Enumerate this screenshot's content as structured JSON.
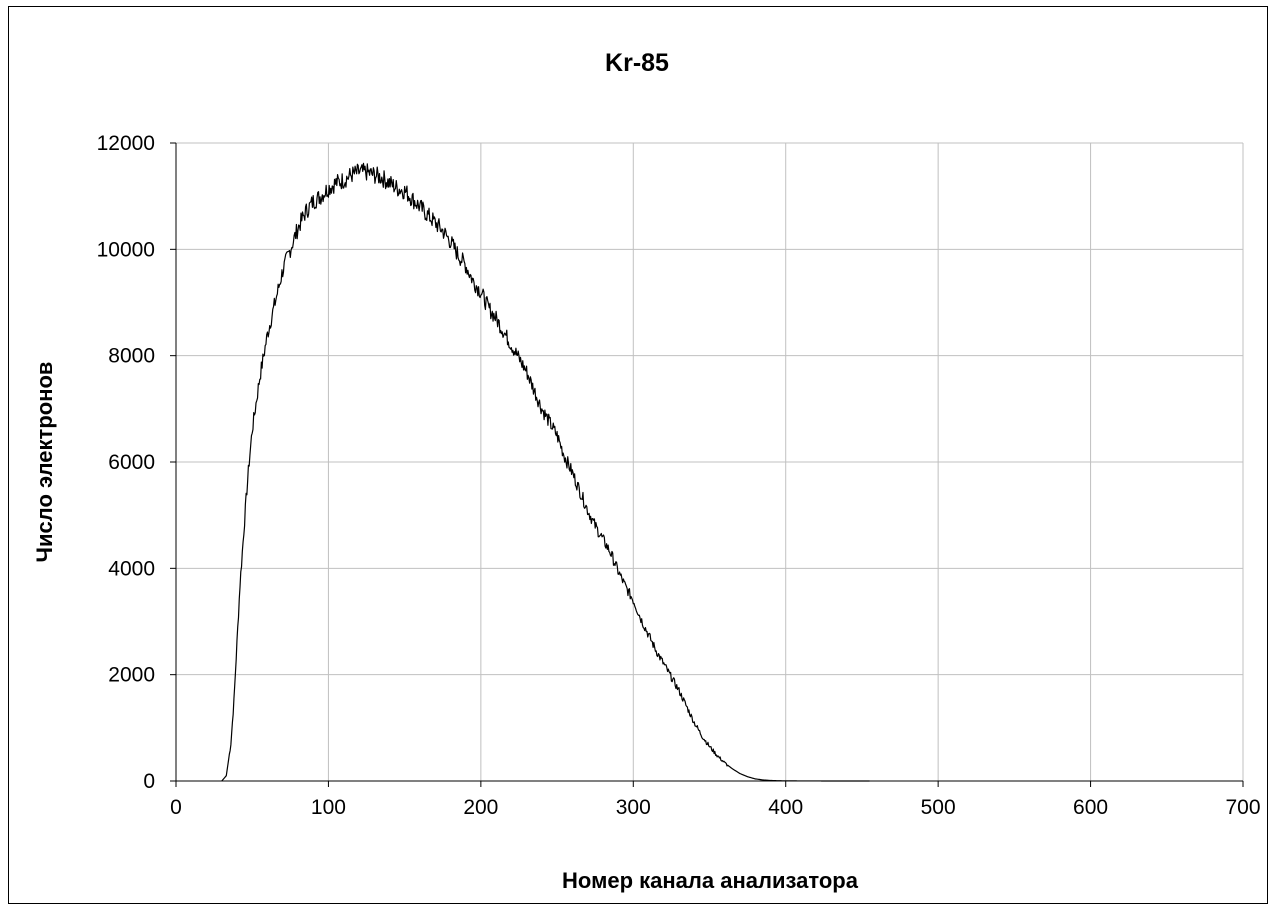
{
  "chart_data": {
    "type": "line",
    "title": "Kr-85",
    "xlabel": "Номер канала анализатора",
    "ylabel": "Число электронов",
    "xlim": [
      0,
      700
    ],
    "ylim": [
      0,
      12000
    ],
    "xticks": [
      "0",
      "100",
      "200",
      "300",
      "400",
      "500",
      "600",
      "700"
    ],
    "yticks": [
      "0",
      "2000",
      "4000",
      "6000",
      "8000",
      "10000",
      "12000"
    ],
    "grid": true,
    "legend": "none",
    "line_color": "#000000",
    "grid_color": "#c0c0c0",
    "x": [
      30,
      33,
      36,
      38,
      40,
      42,
      44,
      46,
      48,
      50,
      55,
      60,
      65,
      70,
      75,
      80,
      85,
      90,
      95,
      100,
      105,
      110,
      115,
      120,
      125,
      130,
      135,
      140,
      145,
      150,
      155,
      160,
      165,
      170,
      175,
      180,
      185,
      190,
      195,
      200,
      205,
      210,
      215,
      220,
      225,
      230,
      235,
      240,
      245,
      250,
      255,
      260,
      265,
      270,
      275,
      280,
      285,
      290,
      295,
      300,
      305,
      310,
      315,
      320,
      325,
      330,
      335,
      340,
      345,
      350,
      355,
      360,
      365,
      370,
      375,
      380,
      385,
      390,
      395,
      400,
      405,
      410,
      420,
      430,
      440,
      450,
      455
    ],
    "y": [
      0,
      100,
      700,
      1500,
      2600,
      3700,
      4500,
      5300,
      6000,
      6600,
      7600,
      8400,
      9000,
      9600,
      10000,
      10400,
      10700,
      10900,
      11000,
      11150,
      11250,
      11300,
      11400,
      11450,
      11450,
      11400,
      11350,
      11250,
      11150,
      11100,
      10950,
      10800,
      10650,
      10500,
      10350,
      10150,
      9900,
      9700,
      9400,
      9200,
      8900,
      8700,
      8450,
      8200,
      7950,
      7700,
      7350,
      7000,
      6750,
      6500,
      6100,
      5800,
      5450,
      5100,
      4800,
      4550,
      4300,
      3950,
      3650,
      3400,
      3050,
      2750,
      2450,
      2200,
      1950,
      1700,
      1400,
      1100,
      850,
      650,
      480,
      340,
      230,
      140,
      80,
      40,
      20,
      10,
      5,
      3,
      2,
      1,
      1,
      0,
      0,
      0,
      0
    ]
  }
}
